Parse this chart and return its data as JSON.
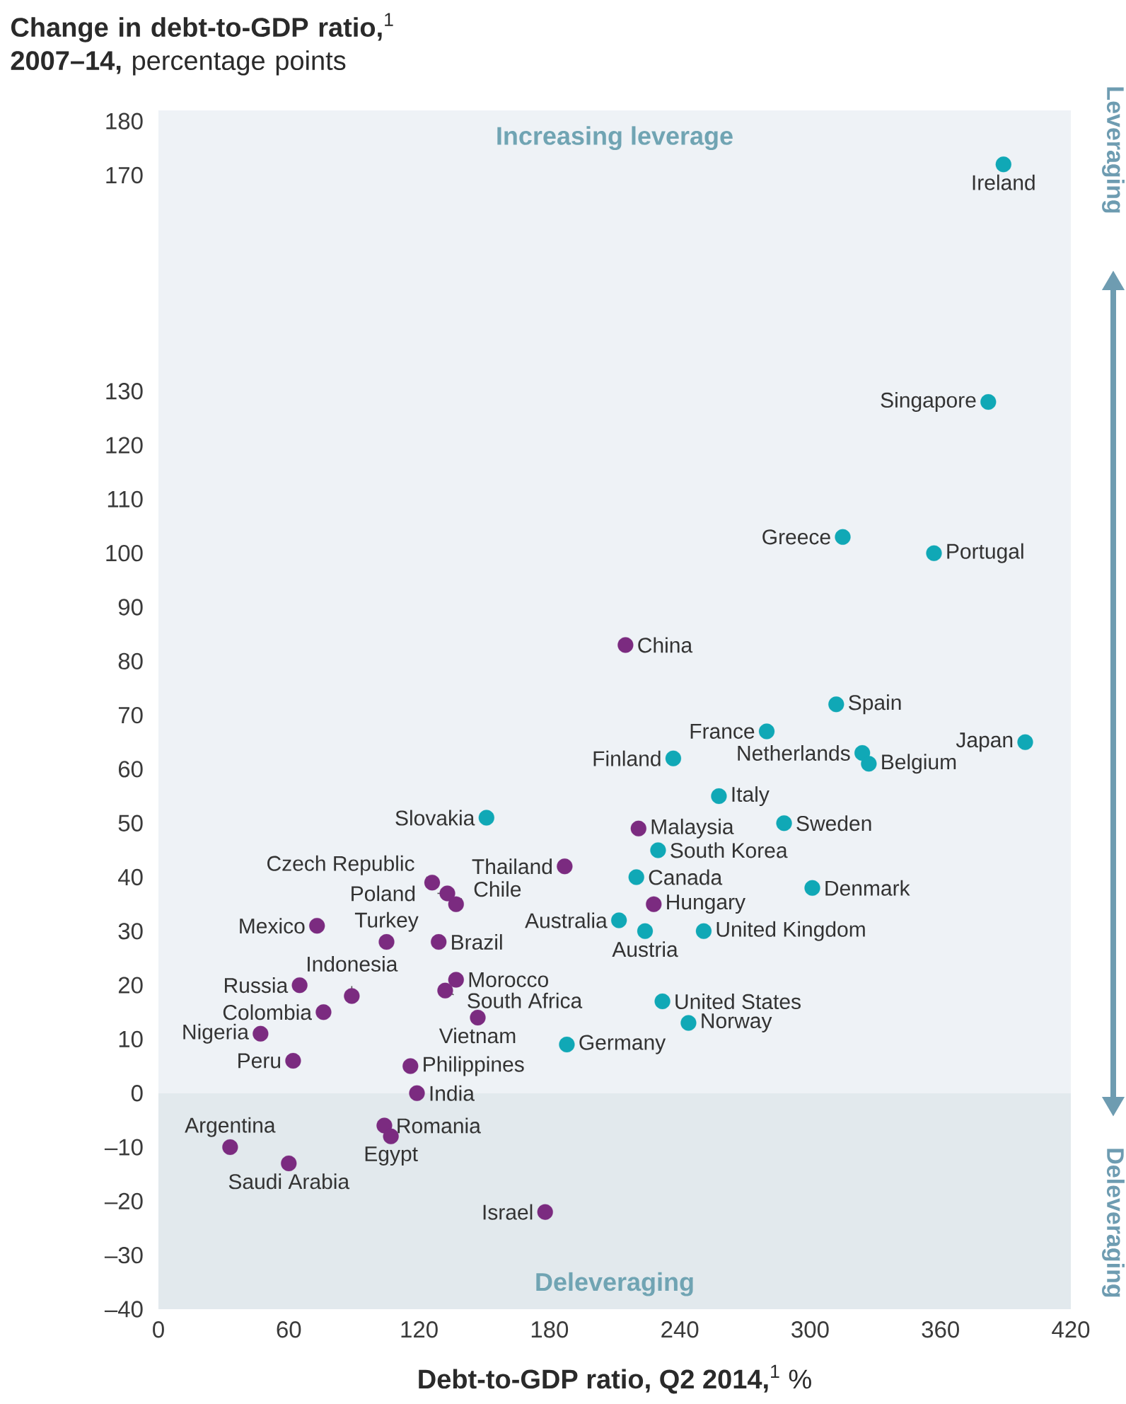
{
  "chart_data": {
    "type": "scatter",
    "ylabel": "**Change in debt-to-GDP ratio,**$^{1}$ **2007–14,** percentage points",
    "xlabel": "**Debt-to-GDP ratio, Q2 2014,**$^{1}$ %",
    "xlim": [
      0,
      420
    ],
    "ylim": [
      -40,
      182
    ],
    "xticks": [
      0,
      60,
      120,
      180,
      240,
      300,
      360,
      420
    ],
    "yticks": [
      {
        "value": -40,
        "label": "–40"
      },
      {
        "value": -30,
        "label": "–30"
      },
      {
        "value": -20,
        "label": "–20"
      },
      {
        "value": -10,
        "label": "–10"
      },
      0,
      10,
      20,
      30,
      40,
      50,
      60,
      70,
      80,
      90,
      100,
      110,
      120,
      130,
      170,
      180
    ],
    "marker": "circle",
    "series": [
      {
        "color": "#10a8b6",
        "x": [
          389,
          382,
          315,
          357,
          312,
          280,
          399,
          237,
          324,
          327,
          258,
          288,
          230,
          220,
          301,
          212,
          224,
          251,
          232,
          244,
          188,
          151
        ],
        "values": [
          172,
          128,
          103,
          100,
          72,
          67,
          65,
          62,
          63,
          61,
          55,
          50,
          45,
          40,
          38,
          32,
          30,
          30,
          17,
          13,
          9,
          51
        ]
      },
      {
        "color": "#7b2b80",
        "x": [
          215,
          221,
          187,
          228,
          126,
          133,
          137,
          73,
          105,
          129,
          137,
          132,
          147,
          65,
          89,
          76,
          47,
          62,
          116,
          119,
          33,
          60,
          104,
          107,
          178
        ],
        "values": [
          83,
          49,
          42,
          35,
          39,
          37,
          35,
          31,
          28,
          28,
          21,
          19,
          14,
          20,
          18,
          15,
          11,
          6,
          5,
          0,
          -10,
          -13,
          -6,
          -8,
          -22
        ]
      }
    ],
    "bands": [
      {
        "axis": "y",
        "from": 0,
        "to": 182,
        "label": "Increasing leverage",
        "color": "#eef2f6"
      },
      {
        "axis": "y",
        "from": -40,
        "to": 0,
        "label": "Deleveraging",
        "color": "#e2e9ed"
      }
    ],
    "annotations": [
      {
        "text": "Ireland",
        "x": 389,
        "y": 172
      },
      {
        "text": "Singapore",
        "x": 382,
        "y": 128
      },
      {
        "text": "Greece",
        "x": 315,
        "y": 103
      },
      {
        "text": "Portugal",
        "x": 357,
        "y": 100
      },
      {
        "text": "Spain",
        "x": 312,
        "y": 72
      },
      {
        "text": "France",
        "x": 280,
        "y": 67
      },
      {
        "text": "Japan",
        "x": 399,
        "y": 65
      },
      {
        "text": "Finland",
        "x": 237,
        "y": 62
      },
      {
        "text": "Netherlands",
        "x": 324,
        "y": 63
      },
      {
        "text": "Belgium",
        "x": 327,
        "y": 61
      },
      {
        "text": "Italy",
        "x": 258,
        "y": 55
      },
      {
        "text": "Sweden",
        "x": 288,
        "y": 50
      },
      {
        "text": "South Korea",
        "x": 230,
        "y": 45
      },
      {
        "text": "Canada",
        "x": 220,
        "y": 40
      },
      {
        "text": "Denmark",
        "x": 301,
        "y": 38
      },
      {
        "text": "Australia",
        "x": 212,
        "y": 32
      },
      {
        "text": "Austria",
        "x": 224,
        "y": 30
      },
      {
        "text": "United Kingdom",
        "x": 251,
        "y": 30
      },
      {
        "text": "United States",
        "x": 232,
        "y": 17
      },
      {
        "text": "Norway",
        "x": 244,
        "y": 13
      },
      {
        "text": "Germany",
        "x": 188,
        "y": 9
      },
      {
        "text": "Slovakia",
        "x": 151,
        "y": 51
      },
      {
        "text": "China",
        "x": 215,
        "y": 83
      },
      {
        "text": "Malaysia",
        "x": 221,
        "y": 49
      },
      {
        "text": "Thailand",
        "x": 187,
        "y": 42
      },
      {
        "text": "Hungary",
        "x": 228,
        "y": 35
      },
      {
        "text": "Czech Republic",
        "x": 126,
        "y": 39
      },
      {
        "text": "Poland",
        "x": 133,
        "y": 37
      },
      {
        "text": "Chile",
        "x": 137,
        "y": 35
      },
      {
        "text": "Mexico",
        "x": 73,
        "y": 31
      },
      {
        "text": "Turkey",
        "x": 105,
        "y": 28
      },
      {
        "text": "Brazil",
        "x": 129,
        "y": 28
      },
      {
        "text": "Morocco",
        "x": 137,
        "y": 21
      },
      {
        "text": "South Africa",
        "x": 132,
        "y": 19
      },
      {
        "text": "Vietnam",
        "x": 147,
        "y": 14
      },
      {
        "text": "Russia",
        "x": 65,
        "y": 20
      },
      {
        "text": "Indonesia",
        "x": 89,
        "y": 18
      },
      {
        "text": "Colombia",
        "x": 76,
        "y": 15
      },
      {
        "text": "Nigeria",
        "x": 47,
        "y": 11
      },
      {
        "text": "Peru",
        "x": 62,
        "y": 6
      },
      {
        "text": "Philippines",
        "x": 116,
        "y": 5
      },
      {
        "text": "India",
        "x": 119,
        "y": 0
      },
      {
        "text": "Argentina",
        "x": 33,
        "y": -10
      },
      {
        "text": "Saudi Arabia",
        "x": 60,
        "y": -13
      },
      {
        "text": "Romania",
        "x": 104,
        "y": -6
      },
      {
        "text": "Egypt",
        "x": 107,
        "y": -8
      },
      {
        "text": "Israel",
        "x": 178,
        "y": -22
      },
      "Leveraging",
      "Deleveraging"
    ]
  }
}
